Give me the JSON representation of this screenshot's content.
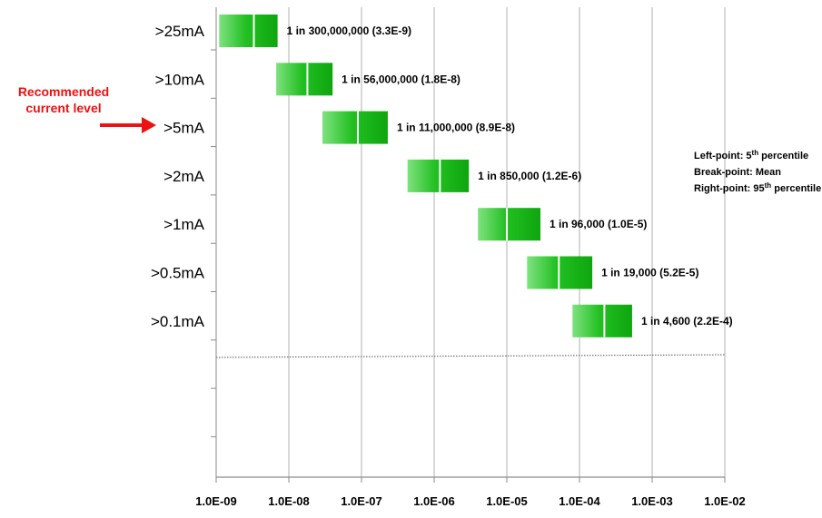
{
  "chart_data": {
    "type": "bar",
    "orientation": "horizontal",
    "x_scale": "log",
    "xlim": [
      1e-09,
      0.01
    ],
    "x_ticks": [
      {
        "value": 1e-09,
        "label": "1.0E-09"
      },
      {
        "value": 1e-08,
        "label": "1.0E-08"
      },
      {
        "value": 1e-07,
        "label": "1.0E-07"
      },
      {
        "value": 1e-06,
        "label": "1.0E-06"
      },
      {
        "value": 1e-05,
        "label": "1.0E-05"
      },
      {
        "value": 0.0001,
        "label": "1.0E-04"
      },
      {
        "value": 0.001,
        "label": "1.0E-03"
      },
      {
        "value": 0.01,
        "label": "1.0E-02"
      }
    ],
    "grid": "vertical",
    "categories": [
      ">25mA",
      ">10mA",
      ">5mA",
      ">2mA",
      ">1mA",
      ">0.5mA",
      ">0.1mA"
    ],
    "series": [
      {
        "p5": [
          1.1e-09,
          6.7e-09,
          2.9e-08,
          4.3e-07,
          4e-06,
          1.9e-05,
          8e-05
        ],
        "mean": [
          3.3e-09,
          1.8e-08,
          8.9e-08,
          1.2e-06,
          1e-05,
          5.2e-05,
          0.00022
        ],
        "p95": [
          7e-09,
          4e-08,
          2.3e-07,
          3e-06,
          2.9e-05,
          0.00015,
          0.00053
        ],
        "color": "#22c022"
      }
    ],
    "data_labels": [
      "1 in 300,000,000 (3.3E-9)",
      "1 in 56,000,000 (1.8E-8)",
      "1 in 11,000,000 (8.9E-8)",
      "1 in 850,000 (1.2E-6)",
      "1 in 96,000 (1.0E-5)",
      "1 in 19,000 (5.2E-5)",
      "1 in 4,600 (2.2E-4)"
    ],
    "annotations": {
      "callout": {
        "lines": [
          "Recommended",
          "current level"
        ],
        "target_category": ">5mA",
        "color": "#ee1111",
        "icon": "red-arrow-icon"
      },
      "legend_note": {
        "position": "right",
        "lines": [
          {
            "prefix": "Left-point:  5",
            "sup": "th",
            "suffix": " percentile"
          },
          {
            "prefix": "Break-point:  Mean",
            "sup": "",
            "suffix": ""
          },
          {
            "prefix": "Right-point:  95",
            "sup": "th",
            "suffix": " percentile"
          }
        ]
      }
    }
  }
}
